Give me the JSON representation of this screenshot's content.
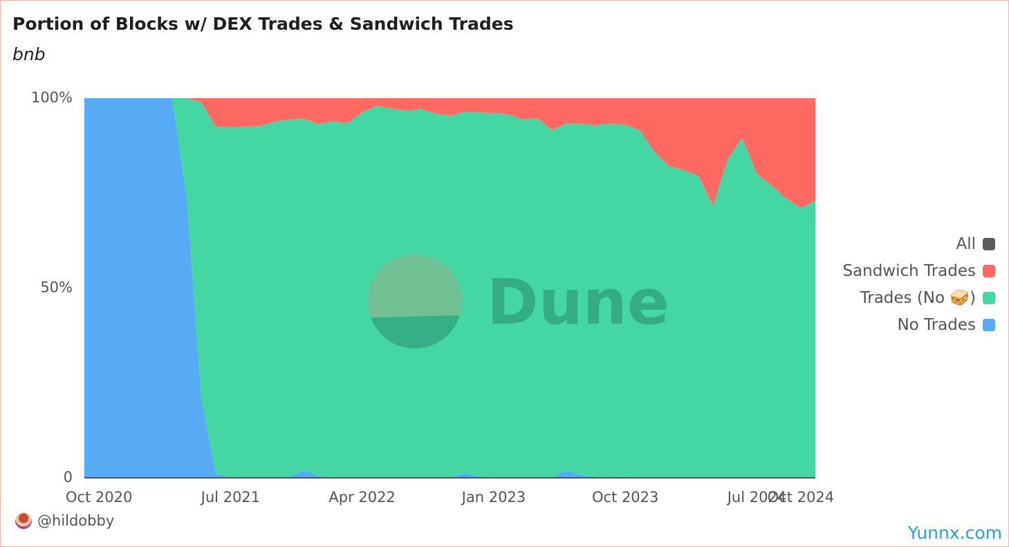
{
  "title": "Portion of Blocks w/ DEX Trades & Sandwich Trades",
  "subtitle": "bnb",
  "author": "@hildobby",
  "footer_brand": "Yunnx.com",
  "watermark": "Dune",
  "legend": [
    {
      "label": "All",
      "color": "#5c5c5c"
    },
    {
      "label": "Sandwich Trades",
      "color": "#ff6961"
    },
    {
      "label": "Trades (No 🥪)",
      "color": "#44d6a3"
    },
    {
      "label": "No Trades",
      "color": "#57abf4"
    }
  ],
  "chart_data": {
    "type": "area",
    "stacked": true,
    "normalized": true,
    "title": "Portion of Blocks w/ DEX Trades & Sandwich Trades",
    "subtitle": "bnb",
    "x": [
      "2020-09-01",
      "2020-10-01",
      "2020-11-01",
      "2020-12-01",
      "2021-01-01",
      "2021-02-01",
      "2021-03-01",
      "2021-04-01",
      "2021-05-01",
      "2021-06-01",
      "2021-07-01",
      "2021-08-01",
      "2021-09-01",
      "2021-10-01",
      "2021-11-01",
      "2021-12-01",
      "2022-01-01",
      "2022-02-01",
      "2022-03-01",
      "2022-04-01",
      "2022-05-01",
      "2022-06-01",
      "2022-07-01",
      "2022-08-01",
      "2022-09-01",
      "2022-10-01",
      "2022-11-01",
      "2022-12-01",
      "2023-01-01",
      "2023-02-01",
      "2023-03-01",
      "2023-04-01",
      "2023-05-01",
      "2023-06-01",
      "2023-07-01",
      "2023-08-01",
      "2023-09-01",
      "2023-10-01",
      "2023-11-01",
      "2023-12-01",
      "2024-01-01",
      "2024-02-01",
      "2024-03-01",
      "2024-04-01",
      "2024-05-01",
      "2024-06-01",
      "2024-07-01",
      "2024-08-01",
      "2024-09-01",
      "2024-10-01",
      "2024-11-01"
    ],
    "x_ticks": [
      "Oct 2020",
      "Jul 2021",
      "Apr 2022",
      "Jan 2023",
      "Oct 2023",
      "Jul 2024",
      "Oct 2024"
    ],
    "y_ticks": [
      "100%",
      "50%",
      "0"
    ],
    "ylim": [
      0,
      100
    ],
    "grid": false,
    "legend_position": "right",
    "series": [
      {
        "name": "No Trades",
        "color": "#57abf4",
        "values": [
          100,
          100,
          100,
          100,
          100,
          100,
          100,
          74,
          21,
          1,
          0.3,
          0.2,
          0.2,
          0.2,
          0.2,
          2,
          0.6,
          0.1,
          0.1,
          0.1,
          0.1,
          0.1,
          0.1,
          0.1,
          0.1,
          0.1,
          1.2,
          0.4,
          0.1,
          0.1,
          0.1,
          0.1,
          0.1,
          2,
          0.7,
          0.3,
          0.3,
          0.4,
          0.1,
          0.1,
          0.1,
          0.1,
          0.1,
          0.1,
          0.1,
          0.1,
          0.1,
          0.1,
          0.1,
          0.1,
          0.1
        ]
      },
      {
        "name": "Trades (No 🥪)",
        "color": "#44d6a3",
        "values": [
          0,
          0,
          0,
          0,
          0,
          0,
          0,
          26,
          78,
          91.5,
          92,
          92.3,
          92.5,
          93.6,
          94.2,
          92.6,
          92.6,
          93.8,
          93.3,
          96.2,
          97.9,
          97.2,
          96.6,
          97.1,
          95.9,
          95.3,
          95.2,
          95.9,
          96,
          95.7,
          94.3,
          94.6,
          91.5,
          91.4,
          92.6,
          92.6,
          93.1,
          92.6,
          91.5,
          85.8,
          82,
          81,
          79.5,
          71.5,
          83.8,
          89.5,
          80,
          77,
          73.5,
          71,
          72.9
        ]
      },
      {
        "name": "Sandwich Trades",
        "color": "#ff6961",
        "values": [
          0,
          0,
          0,
          0,
          0,
          0,
          0,
          0,
          1,
          7.5,
          7.7,
          7.5,
          7.3,
          6.2,
          5.6,
          5.4,
          6.8,
          6.1,
          6.6,
          3.7,
          2,
          2.7,
          3.3,
          2.8,
          4,
          4.6,
          3.6,
          3.7,
          3.9,
          4.2,
          5.6,
          5.3,
          8.4,
          6.6,
          6.7,
          7.1,
          6.6,
          7,
          8.4,
          14.1,
          17.9,
          18.9,
          20.4,
          28.4,
          16.1,
          10.4,
          19.9,
          22.9,
          26.4,
          28.9,
          27
        ]
      }
    ]
  }
}
